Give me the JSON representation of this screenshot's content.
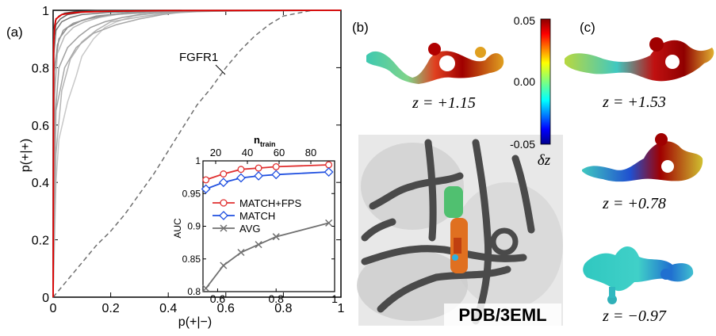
{
  "panels": {
    "a": "(a)",
    "b": "(b)",
    "c": "(c)"
  },
  "main_plot": {
    "xlabel": "p(+|−)",
    "ylabel": "p(+|+)",
    "xticks": [
      "0",
      "0.2",
      "0.4",
      "0.6",
      "0.8",
      "1"
    ],
    "yticks": [
      "0",
      "0.2",
      "0.4",
      "0.6",
      "0.8",
      "1"
    ],
    "annotation": "FGFR1"
  },
  "inset": {
    "top_label_main": "n",
    "top_label_sub": "train",
    "top_ticks": [
      "20",
      "40",
      "60",
      "80"
    ],
    "xticks": [
      "0.6",
      "0.8",
      "1"
    ],
    "ylabel": "AUC",
    "yticks": [
      "0.8",
      "0.85",
      "0.9",
      "0.95",
      "1"
    ]
  },
  "colorbar": {
    "ticks": [
      "0.05",
      "0.00",
      "-0.05"
    ],
    "label": "δz"
  },
  "molecules": {
    "b": "z = +1.15",
    "c1": "z = +1.53",
    "c2": "z = +0.78",
    "c3": "z = −0.97"
  },
  "structure_label": "PDB/3EML",
  "chart_data": [
    {
      "type": "line",
      "title": "",
      "xlabel": "p(+|−)",
      "ylabel": "p(+|+)",
      "xlim": [
        0,
        1
      ],
      "ylim": [
        0,
        1
      ],
      "series": [
        {
          "name": "FGFR1",
          "color": "#707070",
          "dash": true,
          "x": [
            0,
            0.05,
            0.1,
            0.15,
            0.2,
            0.25,
            0.3,
            0.35,
            0.4,
            0.45,
            0.5,
            0.55,
            0.6,
            0.65,
            0.7,
            0.75,
            0.8,
            0.85,
            0.9,
            0.95,
            1
          ],
          "y": [
            0,
            0.06,
            0.12,
            0.18,
            0.23,
            0.29,
            0.36,
            0.43,
            0.51,
            0.59,
            0.67,
            0.73,
            0.8,
            0.86,
            0.91,
            0.95,
            0.98,
            0.99,
            1,
            1,
            1
          ]
        },
        {
          "color": "#c8c8c8",
          "x": [
            0,
            0.01,
            0.02,
            0.05,
            0.08,
            0.1,
            0.14,
            0.18,
            0.22,
            0.28,
            0.35,
            0.45,
            0.6,
            1
          ],
          "y": [
            0,
            0.4,
            0.55,
            0.68,
            0.77,
            0.84,
            0.9,
            0.94,
            0.96,
            0.98,
            0.99,
            0.995,
            1,
            1
          ]
        },
        {
          "color": "#b4b4b4",
          "x": [
            0,
            0.01,
            0.03,
            0.06,
            0.1,
            0.15,
            0.2,
            0.26,
            0.32,
            0.4,
            0.5,
            0.7,
            1
          ],
          "y": [
            0,
            0.5,
            0.72,
            0.83,
            0.89,
            0.93,
            0.96,
            0.97,
            0.98,
            0.99,
            0.995,
            1,
            1
          ]
        },
        {
          "color": "#a0a0a0",
          "x": [
            0,
            0.005,
            0.02,
            0.05,
            0.09,
            0.13,
            0.18,
            0.24,
            0.3,
            0.4,
            0.6,
            1
          ],
          "y": [
            0,
            0.6,
            0.8,
            0.87,
            0.91,
            0.94,
            0.96,
            0.975,
            0.985,
            0.993,
            1,
            1
          ]
        },
        {
          "color": "#b8b8b8",
          "x": [
            0,
            0.005,
            0.015,
            0.04,
            0.07,
            0.11,
            0.16,
            0.22,
            0.3,
            0.45,
            1
          ],
          "y": [
            0,
            0.7,
            0.85,
            0.91,
            0.94,
            0.96,
            0.975,
            0.985,
            0.99,
            1,
            1
          ]
        },
        {
          "color": "#8c8c8c",
          "x": [
            0,
            0.005,
            0.02,
            0.05,
            0.1,
            0.15,
            0.25,
            0.4,
            1
          ],
          "y": [
            0,
            0.8,
            0.9,
            0.94,
            0.965,
            0.98,
            0.99,
            0.997,
            1
          ]
        },
        {
          "color": "#787878",
          "x": [
            0,
            0.003,
            0.01,
            0.03,
            0.06,
            0.1,
            0.2,
            0.35,
            1
          ],
          "y": [
            0,
            0.85,
            0.93,
            0.96,
            0.975,
            0.985,
            0.993,
            0.998,
            1
          ]
        },
        {
          "color": "#a8a8a8",
          "x": [
            0,
            0.01,
            0.04,
            0.08,
            0.14,
            0.22,
            0.3,
            0.38,
            0.5,
            1
          ],
          "y": [
            0,
            0.65,
            0.8,
            0.87,
            0.92,
            0.95,
            0.97,
            0.985,
            1,
            1
          ]
        },
        {
          "color": "#646464",
          "x": [
            0,
            0.002,
            0.01,
            0.025,
            0.05,
            0.1,
            0.2,
            1
          ],
          "y": [
            0,
            0.9,
            0.95,
            0.97,
            0.985,
            0.993,
            0.998,
            1
          ]
        },
        {
          "color": "#505050",
          "x": [
            0,
            0.002,
            0.008,
            0.02,
            0.04,
            0.08,
            0.15,
            1
          ],
          "y": [
            0,
            0.93,
            0.965,
            0.98,
            0.99,
            0.996,
            0.999,
            1
          ]
        },
        {
          "color": "#969696",
          "x": [
            0,
            0.004,
            0.015,
            0.035,
            0.07,
            0.12,
            0.2,
            0.3,
            1
          ],
          "y": [
            0,
            0.78,
            0.88,
            0.93,
            0.955,
            0.97,
            0.985,
            0.995,
            1
          ]
        },
        {
          "name": "MATCH+FPS",
          "color": "#e00000",
          "x": [
            0,
            0.002,
            0.005,
            0.01,
            0.03,
            0.06,
            0.1,
            0.2,
            0.4,
            1
          ],
          "y": [
            0,
            0.88,
            0.94,
            0.97,
            0.985,
            0.99,
            0.994,
            0.997,
            0.999,
            1
          ]
        }
      ]
    },
    {
      "type": "line",
      "title": "",
      "xlabel": "",
      "ylabel": "AUC",
      "xlim": [
        0.55,
        1.0
      ],
      "ylim": [
        0.8,
        1.0
      ],
      "x_top_label": "ntrain",
      "x_top_lim": [
        12,
        95
      ],
      "legend": "inside",
      "series": [
        {
          "name": "MATCH+FPS",
          "color": "#e03030",
          "marker": "circle",
          "x": [
            0.56,
            0.62,
            0.68,
            0.74,
            0.8,
            0.98
          ],
          "y": [
            0.971,
            0.98,
            0.987,
            0.989,
            0.991,
            0.994
          ]
        },
        {
          "name": "MATCH",
          "color": "#2050e0",
          "marker": "diamond",
          "x": [
            0.56,
            0.62,
            0.68,
            0.74,
            0.8,
            0.98
          ],
          "y": [
            0.957,
            0.967,
            0.974,
            0.977,
            0.979,
            0.983
          ]
        },
        {
          "name": "AVG",
          "color": "#707070",
          "marker": "x",
          "x": [
            0.56,
            0.62,
            0.68,
            0.74,
            0.8,
            0.98
          ],
          "y": [
            0.805,
            0.84,
            0.86,
            0.872,
            0.884,
            0.905
          ]
        }
      ]
    }
  ]
}
